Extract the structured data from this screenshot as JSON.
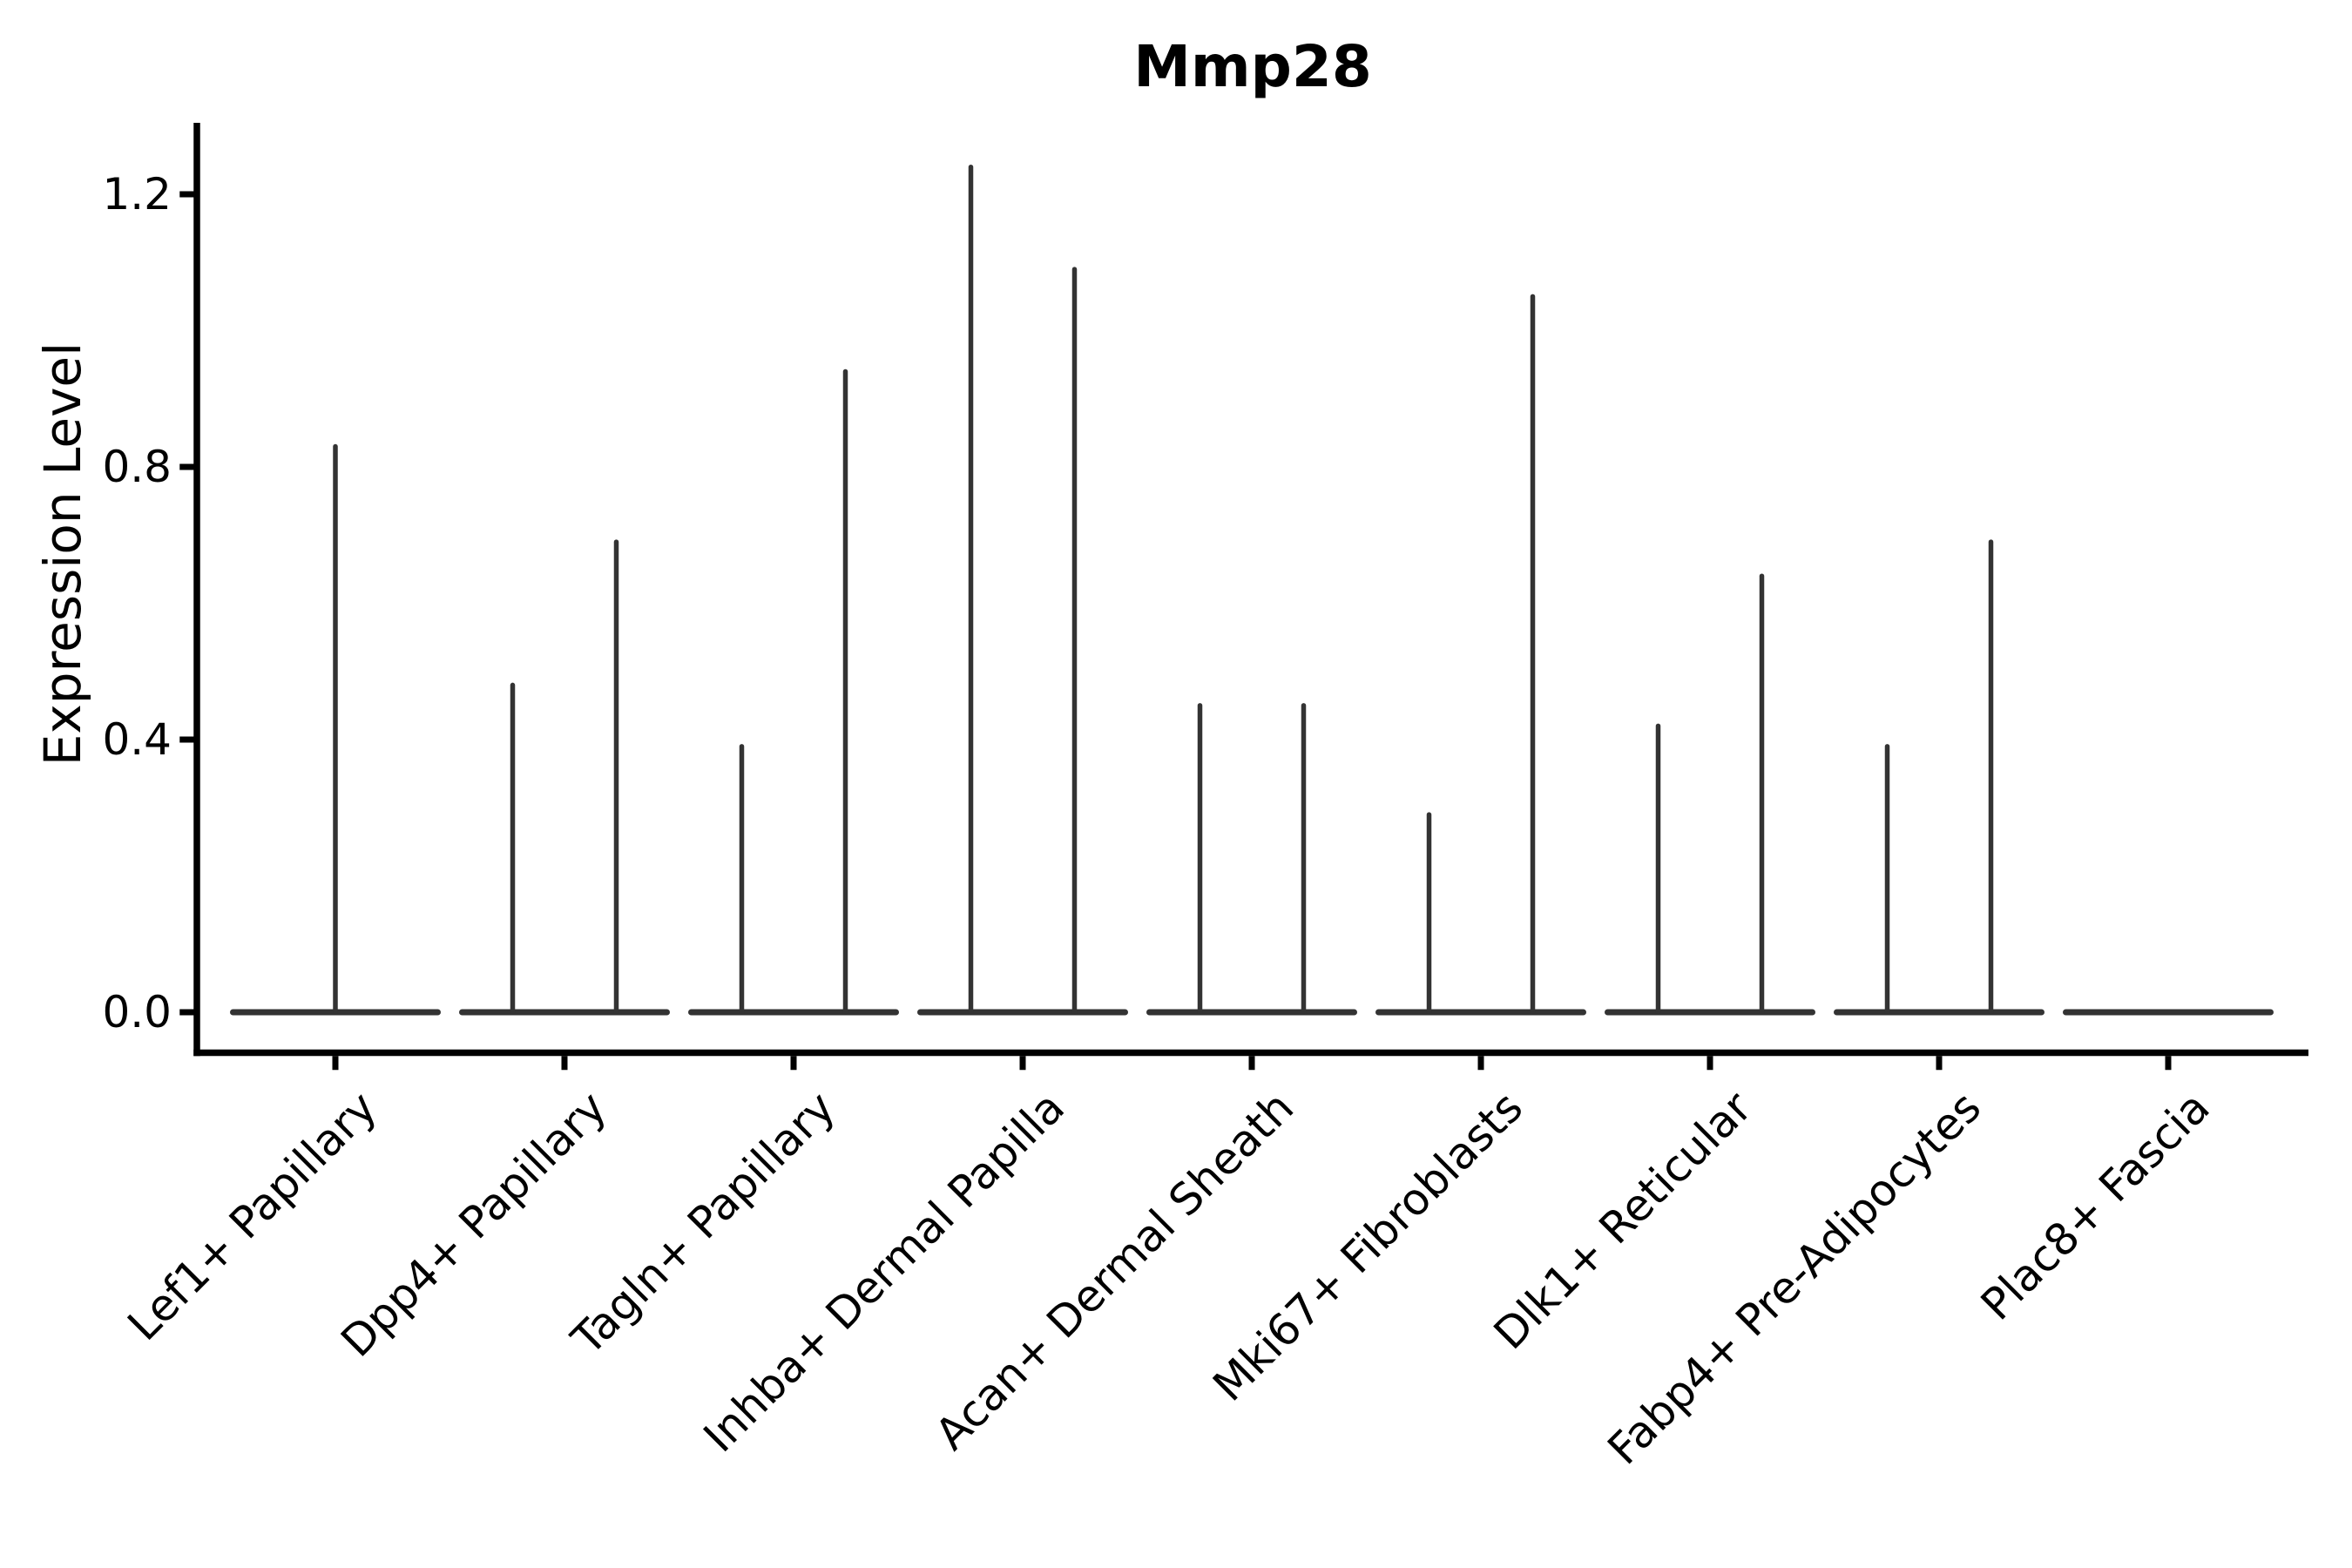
{
  "title": "Mmp28",
  "chart_data": {
    "type": "violin",
    "title": "Mmp28",
    "xlabel": "",
    "ylabel": "Expression Level",
    "ylim": [
      -0.06,
      1.3
    ],
    "yticks": [
      0.0,
      0.4,
      0.8,
      1.2
    ],
    "ytick_labels": [
      "0.0",
      "0.4",
      "0.8",
      "1.2"
    ],
    "grid": false,
    "legend": "none",
    "categories": [
      "Lef1+ Papillary",
      "Dpp4+ Papillary",
      "Tagln+ Papillary",
      "Inhba+ Dermal Papilla",
      "Acan+ Dermal Sheath",
      "Mki67+ Fibroblasts",
      "Dlk1+ Reticular",
      "Fabp4+ Pre-Adipocytes",
      "Plac8+ Fascia"
    ],
    "description": "Zero-inflated expression violins: each violin collapses to a flat bar at 0 with a thin needle rising to the max expressed value. Categories with two sub-violins show two dodged needles; Lef1+ Papillary has a single centered needle; Plac8+ Fascia is all zeros (flat bar only).",
    "violins": [
      {
        "category": "Lef1+ Papillary",
        "baseline": 0.0,
        "needles": [
          {
            "pos": 0,
            "max": 0.83
          }
        ]
      },
      {
        "category": "Dpp4+ Papillary",
        "baseline": 0.0,
        "needles": [
          {
            "pos": -1,
            "max": 0.48
          },
          {
            "pos": 1,
            "max": 0.69
          }
        ]
      },
      {
        "category": "Tagln+ Papillary",
        "baseline": 0.0,
        "needles": [
          {
            "pos": -1,
            "max": 0.39
          },
          {
            "pos": 1,
            "max": 0.94
          }
        ]
      },
      {
        "category": "Inhba+ Dermal Papilla",
        "baseline": 0.0,
        "needles": [
          {
            "pos": -1,
            "max": 1.24
          },
          {
            "pos": 1,
            "max": 1.09
          }
        ]
      },
      {
        "category": "Acan+ Dermal Sheath",
        "baseline": 0.0,
        "needles": [
          {
            "pos": -1,
            "max": 0.45
          },
          {
            "pos": 1,
            "max": 0.45
          }
        ]
      },
      {
        "category": "Mki67+ Fibroblasts",
        "baseline": 0.0,
        "needles": [
          {
            "pos": -1,
            "max": 0.29
          },
          {
            "pos": 1,
            "max": 1.05
          }
        ]
      },
      {
        "category": "Dlk1+ Reticular",
        "baseline": 0.0,
        "needles": [
          {
            "pos": -1,
            "max": 0.42
          },
          {
            "pos": 1,
            "max": 0.64
          }
        ]
      },
      {
        "category": "Fabp4+ Pre-Adipocytes",
        "baseline": 0.0,
        "needles": [
          {
            "pos": -1,
            "max": 0.39
          },
          {
            "pos": 1,
            "max": 0.69
          }
        ]
      },
      {
        "category": "Plac8+ Fascia",
        "baseline": 0.0,
        "needles": []
      }
    ],
    "colors": {
      "violin": "#333333",
      "axis": "#000000",
      "text": "#000000",
      "background": "#ffffff"
    }
  }
}
